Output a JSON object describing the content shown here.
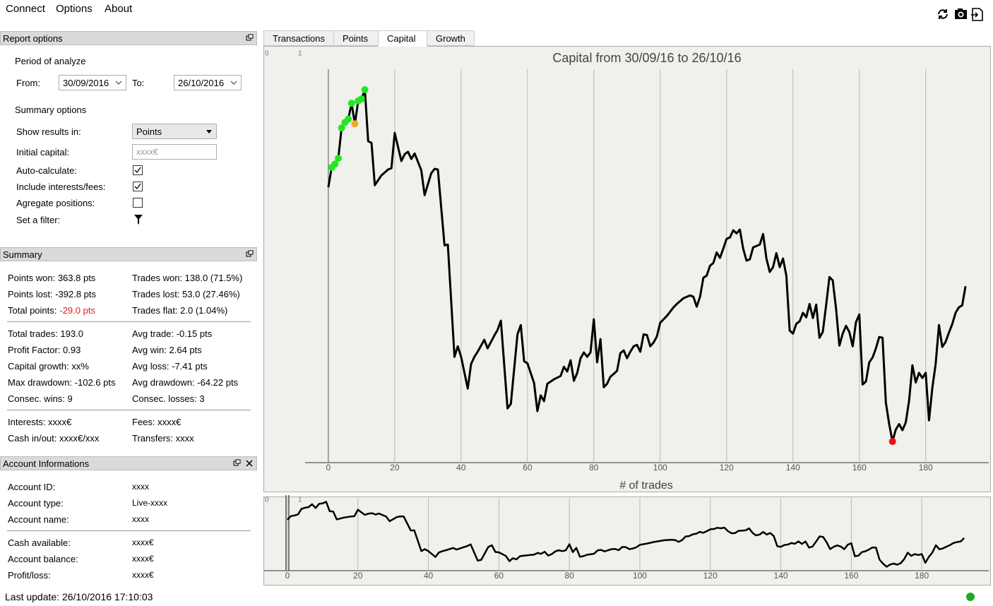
{
  "menu": [
    "Connect",
    "Options",
    "About"
  ],
  "report_options": {
    "title": "Report options",
    "period_label": "Period of analyze",
    "from_label": "From:",
    "from": "30/09/2016",
    "to_label": "To:",
    "to": "26/10/2016",
    "summary_label": "Summary options",
    "rows": [
      {
        "label": "Show results in:",
        "select": "Points"
      },
      {
        "label": "Initial capital:",
        "placeholder": "xxxx€"
      },
      {
        "label": "Auto-calculate:",
        "checked": true
      },
      {
        "label": "Include interests/fees:",
        "checked": true
      },
      {
        "label": "Agregate positions:",
        "checked": false
      },
      {
        "label": "Set a filter:",
        "filter": true
      }
    ]
  },
  "summary": {
    "title": "Summary",
    "groups": [
      [
        [
          "Points won: 363.8 pts",
          "Trades won: 138.0 (71.5%)"
        ],
        [
          "Points lost: -392.8 pts",
          "Trades lost: 53.0 (27.46%)"
        ],
        [
          {
            "label": "Total points:",
            "value": "-29.0 pts",
            "value_color": "#e0201a"
          },
          "Trades flat: 2.0 (1.04%)"
        ]
      ],
      [
        [
          "Total trades: 193.0",
          "Avg trade: -0.15 pts"
        ],
        [
          "Profit Factor: 0.93",
          "Avg win: 2.64 pts"
        ],
        [
          "Capital growth: xx%",
          "Avg loss: -7.41 pts"
        ],
        [
          "Max drawdown: -102.6 pts",
          "Avg drawdown: -64.22 pts"
        ],
        [
          "Consec. wins: 9",
          "Consec. losses: 3"
        ]
      ],
      [
        [
          "Interests: xxxx€",
          "Fees: xxxx€"
        ],
        [
          "Cash in/out: xxxx€/xxx",
          "Transfers: xxxx"
        ]
      ]
    ]
  },
  "account": {
    "title": "Account Informations",
    "groups": [
      [
        [
          "Account ID:",
          "xxxx"
        ],
        [
          "Account type:",
          "Live-xxxx"
        ],
        [
          "Account name:",
          "xxxx"
        ]
      ],
      [
        [
          "Cash available:",
          "xxxx€"
        ],
        [
          "Account balance:",
          "xxxx€"
        ],
        [
          "Profit/loss:",
          "xxxx€"
        ]
      ]
    ]
  },
  "tabs": {
    "items": [
      "Transactions",
      "Points",
      "Capital",
      "Growth"
    ],
    "active": 2
  },
  "status": "Last update: 26/10/2016 17:10:03",
  "chart_data": {
    "type": "line",
    "title": "Capital from 30/09/16 to 26/10/16",
    "x_label": "# of trades",
    "corner_labels": [
      "0",
      "1"
    ],
    "xlim": [
      -7,
      199
    ],
    "ylim": [
      -80.7,
      34.6
    ],
    "mini_xlim": [
      -6.6,
      199
    ],
    "xticks": [
      0,
      20,
      40,
      60,
      80,
      100,
      120,
      140,
      160,
      180
    ],
    "series": [
      {
        "color": "#000000",
        "x": [
          0,
          1,
          2,
          3,
          4,
          5,
          6,
          7,
          8,
          9,
          10,
          11,
          12,
          13,
          14,
          16,
          18,
          19,
          20,
          22,
          23,
          24,
          25,
          26,
          28,
          29,
          31,
          32,
          33,
          35,
          36,
          38,
          39,
          40,
          42,
          43,
          44,
          45,
          47,
          48,
          50,
          51,
          52,
          54,
          55,
          57,
          58,
          59,
          60,
          62,
          63,
          64,
          65,
          66,
          68,
          70,
          71,
          72,
          73,
          74,
          75,
          76,
          77,
          78,
          79,
          80,
          81,
          82,
          83,
          84,
          85,
          86,
          87,
          88,
          89,
          90,
          91,
          92,
          93,
          94,
          95,
          96,
          97,
          98,
          99,
          100,
          102,
          104,
          105,
          107,
          109,
          110,
          111,
          112,
          113,
          114,
          115,
          116,
          117,
          118,
          119,
          120,
          121,
          122,
          123,
          124,
          125,
          126,
          127,
          128,
          130,
          131,
          132,
          133,
          134,
          135,
          136,
          137,
          138,
          139,
          140,
          141,
          142,
          143,
          144,
          145,
          146,
          147,
          148,
          149,
          150,
          151,
          152,
          153,
          154,
          155,
          156,
          157,
          158,
          159,
          160,
          161,
          162,
          163,
          164,
          165,
          166,
          167,
          168,
          169,
          170,
          171,
          172,
          173,
          174,
          175,
          176,
          177,
          178,
          179,
          180,
          181,
          182,
          183,
          184,
          185,
          186,
          187,
          188,
          189,
          190,
          191,
          192
        ],
        "values": [
          0,
          5.8,
          6.8,
          8.5,
          17.4,
          19,
          20,
          24.6,
          18.6,
          25.3,
          25.9,
          28.6,
          13.5,
          13,
          0.6,
          3.5,
          5.2,
          5.6,
          15.9,
          7.7,
          9.7,
          10.4,
          8.3,
          9.9,
          5,
          -2.3,
          4.1,
          5.4,
          5.2,
          -17,
          -16.8,
          -49.7,
          -46.6,
          -49.7,
          -59,
          -51.8,
          -49.7,
          -48.2,
          -44.7,
          -47.2,
          -43.5,
          -41.8,
          -39.1,
          -64.8,
          -63.5,
          -43.1,
          -40.4,
          -51,
          -51.6,
          -57.4,
          -65.6,
          -61,
          -62.7,
          -57.6,
          -56.3,
          -55.3,
          -52.6,
          -54,
          -50.7,
          -56.7,
          -54.4,
          -50.1,
          -48.4,
          -49.7,
          -48.4,
          -38.7,
          -51.3,
          -44.5,
          -58.6,
          -57.6,
          -55.5,
          -54.7,
          -53.8,
          -48.6,
          -47.8,
          -50.1,
          -48.2,
          -46.6,
          -46.2,
          -48.2,
          -43.1,
          -43.3,
          -46.6,
          -45.5,
          -43.7,
          -39.7,
          -37.7,
          -35.2,
          -34.2,
          -32.5,
          -31.7,
          -32.1,
          -35,
          -32.1,
          -26.5,
          -25.9,
          -23,
          -22.2,
          -19.1,
          -20.7,
          -18,
          -15.1,
          -14.7,
          -12.6,
          -13.5,
          -12.4,
          -18,
          -21.5,
          -21.1,
          -17.6,
          -16.8,
          -13.7,
          -20.9,
          -24.8,
          -23.4,
          -19.3,
          -23.4,
          -20.9,
          -25.9,
          -42,
          -42.9,
          -40,
          -39.3,
          -36.8,
          -38.1,
          -34.2,
          -38.3,
          -34.4,
          -44.1,
          -42.4,
          -34.6,
          -26.3,
          -27.3,
          -35.6,
          -46.4,
          -42.9,
          -40.6,
          -42.4,
          -46.6,
          -39.5,
          -37.3,
          -57.8,
          -56.9,
          -51.3,
          -49.9,
          -47.2,
          -43.9,
          -44.1,
          -63.1,
          -69.4,
          -74.5,
          -71,
          -69.4,
          -71.2,
          -68.9,
          -62.5,
          -52.2,
          -57.2,
          -54.4,
          -55.9,
          -54.4,
          -68.3,
          -58.8,
          -51.8,
          -40.4,
          -46.8,
          -45.3,
          -42.6,
          -40.1,
          -36.8,
          -35.2,
          -34.6,
          -29
        ]
      },
      {
        "color": "#22e622",
        "marker": true,
        "x": [
          1,
          2,
          3,
          4,
          5,
          6,
          7,
          9,
          10,
          11
        ],
        "values": [
          5.8,
          6.8,
          8.5,
          17.4,
          19,
          20,
          24.6,
          25.3,
          25.9,
          28.6
        ]
      },
      {
        "color": "#f5a623",
        "marker": true,
        "x": [
          8
        ],
        "values": [
          18.6
        ]
      },
      {
        "color": "#f01010",
        "marker": true,
        "x": [
          170
        ],
        "values": [
          -74.5
        ]
      }
    ]
  }
}
